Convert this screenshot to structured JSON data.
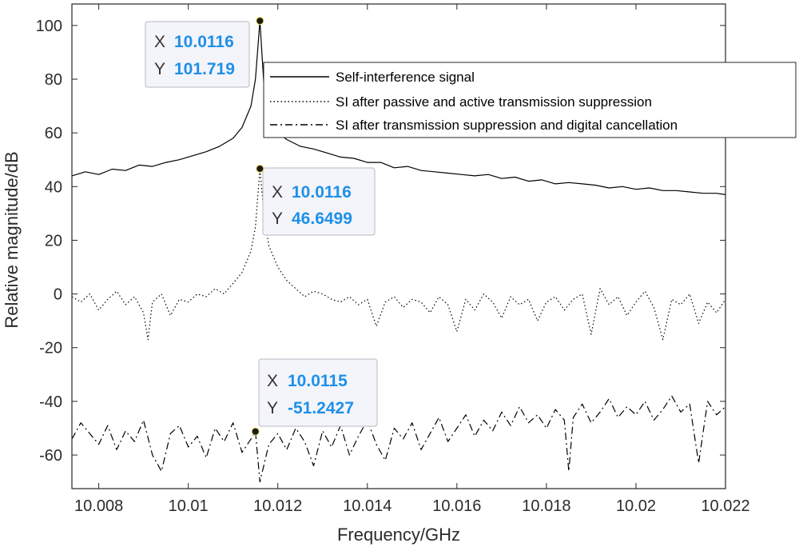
{
  "chart_data": {
    "type": "line",
    "xlabel": "Frequency/GHz",
    "ylabel": "Relative magnitude/dB",
    "xlim": [
      10.0074,
      10.022
    ],
    "ylim": [
      -72.5,
      108
    ],
    "xticks": [
      "10.008",
      "10.01",
      "10.012",
      "10.014",
      "10.016",
      "10.018",
      "10.02",
      "10.022"
    ],
    "xtick_values": [
      10.008,
      10.01,
      10.012,
      10.014,
      10.016,
      10.018,
      10.02,
      10.022
    ],
    "yticks": [
      "100",
      "80",
      "60",
      "40",
      "20",
      "0",
      "-20",
      "-40",
      "-60"
    ],
    "ytick_values": [
      100,
      80,
      60,
      40,
      20,
      0,
      -20,
      -40,
      -60
    ],
    "grid": false,
    "legend_position": "top-right",
    "series": [
      {
        "name": "Self-interference signal",
        "style": "solid",
        "x": [
          10.0074,
          10.0077,
          10.008,
          10.0083,
          10.0086,
          10.0089,
          10.0092,
          10.0095,
          10.0098,
          10.0101,
          10.0104,
          10.0107,
          10.011,
          10.0112,
          10.0114,
          10.0115,
          10.0116,
          10.0117,
          10.0118,
          10.012,
          10.0122,
          10.0125,
          10.0128,
          10.0131,
          10.0134,
          10.0137,
          10.014,
          10.0143,
          10.0146,
          10.0149,
          10.0152,
          10.0155,
          10.0158,
          10.0161,
          10.0164,
          10.0167,
          10.017,
          10.0173,
          10.0176,
          10.0179,
          10.0182,
          10.0185,
          10.0188,
          10.0191,
          10.0194,
          10.0197,
          10.02,
          10.0203,
          10.0206,
          10.0209,
          10.0212,
          10.0215,
          10.0218,
          10.022
        ],
        "y": [
          44,
          45.5,
          44.5,
          46.5,
          46,
          48,
          47.5,
          49,
          50,
          51.5,
          53,
          55,
          58,
          62,
          70,
          80,
          101.719,
          75,
          66,
          60,
          57.5,
          55,
          54,
          52.5,
          51,
          50.5,
          49,
          49,
          47,
          47.5,
          46,
          45.5,
          45,
          44.5,
          44,
          44.5,
          43,
          43.5,
          42,
          42.5,
          41,
          41.5,
          41,
          40.5,
          39.5,
          40,
          39,
          39.5,
          38.5,
          38.5,
          38,
          37.5,
          37.5,
          37
        ]
      },
      {
        "name": "SI after passive and active transmission suppression",
        "style": "dotted",
        "x": [
          10.0074,
          10.0076,
          10.0078,
          10.008,
          10.0082,
          10.0084,
          10.0086,
          10.0088,
          10.009,
          10.0091,
          10.0092,
          10.0094,
          10.0096,
          10.0098,
          10.01,
          10.0102,
          10.0104,
          10.0106,
          10.0108,
          10.011,
          10.0112,
          10.0114,
          10.0115,
          10.0116,
          10.0117,
          10.0118,
          10.012,
          10.0122,
          10.0124,
          10.0126,
          10.0128,
          10.013,
          10.0132,
          10.0134,
          10.0136,
          10.0138,
          10.014,
          10.0142,
          10.0144,
          10.0146,
          10.0148,
          10.015,
          10.0152,
          10.0154,
          10.0156,
          10.0158,
          10.016,
          10.0162,
          10.0164,
          10.0166,
          10.0168,
          10.017,
          10.0172,
          10.0174,
          10.0176,
          10.0178,
          10.018,
          10.0182,
          10.0184,
          10.0186,
          10.0188,
          10.019,
          10.0192,
          10.0194,
          10.0196,
          10.0198,
          10.02,
          10.0202,
          10.0204,
          10.0206,
          10.0208,
          10.021,
          10.0212,
          10.0214,
          10.0216,
          10.0218,
          10.022
        ],
        "y": [
          -1,
          -3,
          0,
          -6,
          -2,
          1,
          -4,
          -1,
          -7,
          -17,
          -3,
          0,
          -8,
          -2,
          -3,
          0,
          -1,
          2,
          0,
          4,
          8,
          16,
          25,
          46.6499,
          28,
          18,
          10,
          5,
          2,
          -1,
          1,
          0,
          -2,
          -3,
          -1,
          -4,
          -2,
          -12,
          -3,
          -1,
          -5,
          -2,
          -3,
          -7,
          -1,
          -4,
          -14,
          -2,
          -6,
          0,
          -3,
          -9,
          -1,
          -4,
          -2,
          -10,
          -3,
          -1,
          -6,
          -2,
          0,
          -15,
          2,
          -4,
          -1,
          -8,
          -3,
          1,
          -5,
          -17,
          -2,
          -4,
          0,
          -11,
          -3,
          -7,
          -2
        ]
      },
      {
        "name": "SI after transmission suppression and digital cancellation",
        "style": "dashdot",
        "x": [
          10.0074,
          10.0076,
          10.0078,
          10.008,
          10.0082,
          10.0084,
          10.0086,
          10.0088,
          10.009,
          10.0092,
          10.0094,
          10.0096,
          10.0098,
          10.01,
          10.0102,
          10.0104,
          10.0106,
          10.0108,
          10.011,
          10.0112,
          10.0114,
          10.0115,
          10.0116,
          10.0118,
          10.012,
          10.0122,
          10.0124,
          10.0126,
          10.0128,
          10.013,
          10.0132,
          10.0134,
          10.0136,
          10.0138,
          10.014,
          10.0142,
          10.0144,
          10.0146,
          10.0148,
          10.015,
          10.0152,
          10.0154,
          10.0156,
          10.0158,
          10.016,
          10.0162,
          10.0164,
          10.0166,
          10.0168,
          10.017,
          10.0172,
          10.0174,
          10.0176,
          10.0178,
          10.018,
          10.0182,
          10.0184,
          10.0185,
          10.0186,
          10.0188,
          10.019,
          10.0192,
          10.0194,
          10.0196,
          10.0198,
          10.02,
          10.0202,
          10.0204,
          10.0206,
          10.0208,
          10.021,
          10.0212,
          10.0214,
          10.0216,
          10.0218,
          10.022
        ],
        "y": [
          -54,
          -48,
          -52,
          -56,
          -49,
          -58,
          -51,
          -55,
          -47,
          -60,
          -66,
          -52,
          -49,
          -57,
          -53,
          -61,
          -50,
          -55,
          -48,
          -59,
          -54,
          -51.2427,
          -70,
          -56,
          -52,
          -58,
          -50,
          -55,
          -64,
          -51,
          -57,
          -49,
          -60,
          -53,
          -47,
          -56,
          -62,
          -50,
          -54,
          -48,
          -58,
          -52,
          -46,
          -55,
          -50,
          -45,
          -53,
          -47,
          -51,
          -44,
          -49,
          -42,
          -48,
          -45,
          -50,
          -43,
          -47,
          -66,
          -46,
          -41,
          -48,
          -44,
          -39,
          -46,
          -42,
          -45,
          -40,
          -47,
          -43,
          -38,
          -44,
          -41,
          -63,
          -40,
          -45,
          -42
        ]
      }
    ],
    "datatips": [
      {
        "x_label": "X",
        "x_value": "10.0116",
        "y_label": "Y",
        "y_value": "101.719",
        "x": 10.0116,
        "y": 101.719
      },
      {
        "x_label": "X",
        "x_value": "10.0116",
        "y_label": "Y",
        "y_value": "46.6499",
        "x": 10.0116,
        "y": 46.6499
      },
      {
        "x_label": "X",
        "x_value": "10.0115",
        "y_label": "Y",
        "y_value": "-51.2427",
        "x": 10.0115,
        "y": -51.2427
      }
    ],
    "colors": {
      "line": "#000000",
      "datatip_value": "#1e90e8",
      "axis": "#262626"
    }
  }
}
